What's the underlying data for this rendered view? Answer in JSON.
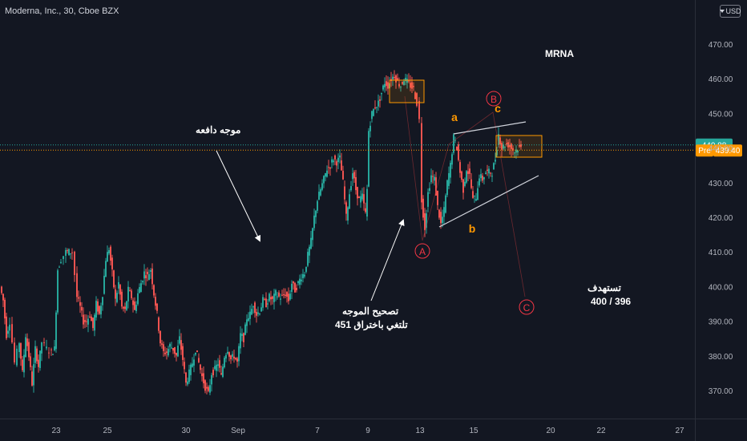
{
  "header": {
    "symbol_title": "Moderna, Inc., 30, Cboe BZX",
    "currency_label": "USD"
  },
  "annotations": {
    "ticker_label": "MRNA",
    "impulse_wave": "موجه دافعه",
    "correction_line1": "تصحيح الموجه",
    "correction_line2": "تلتغي باختراق 451",
    "target_line1": "تستهدف",
    "target_line2": "400 / 396",
    "wave_A": "A",
    "wave_B": "B",
    "wave_C": "C",
    "wave_a": "a",
    "wave_b": "b",
    "wave_c": "c"
  },
  "colors": {
    "background": "#131722",
    "up_candle": "#26a69a",
    "down_candle": "#ef5350",
    "wave_label": "#f23645",
    "sub_wave_label": "#ff9800",
    "box_border": "#ff9800",
    "last_price_badge": "#26a69a",
    "pre_badge": "#ff9800"
  },
  "chart_data": {
    "type": "candlestick",
    "title": "Moderna, Inc., 30, Cboe BZX",
    "ylim": [
      363,
      478
    ],
    "y_ticks": [
      370,
      380,
      390,
      400,
      410,
      420,
      430,
      440,
      450,
      460,
      470
    ],
    "y_tick_labels": [
      "370.00",
      "380.00",
      "390.00",
      "400.00",
      "410.00",
      "420.00",
      "430.00",
      "440.00",
      "450.00",
      "460.00",
      "470.00"
    ],
    "x_ticks": [
      "23",
      "25",
      "30",
      "Sep",
      "7",
      "9",
      "13",
      "15",
      "20",
      "22",
      "27"
    ],
    "last_price": 440.88,
    "last_price_label": "440.88",
    "pre_market_label": "Pre",
    "pre_market_price": 439.4,
    "pre_market_price_label": "439.40",
    "approx_path": [
      [
        0,
        400
      ],
      [
        4,
        396
      ],
      [
        8,
        386
      ],
      [
        12,
        390
      ],
      [
        18,
        378
      ],
      [
        24,
        384
      ],
      [
        28,
        375
      ],
      [
        32,
        386
      ],
      [
        36,
        380
      ],
      [
        40,
        372
      ],
      [
        44,
        382
      ],
      [
        48,
        377
      ],
      [
        52,
        384
      ],
      [
        58,
        382
      ],
      [
        64,
        381
      ],
      [
        68,
        382
      ],
      [
        72,
        405
      ],
      [
        76,
        408
      ],
      [
        82,
        410
      ],
      [
        86,
        410
      ],
      [
        90,
        410
      ],
      [
        96,
        397
      ],
      [
        100,
        394
      ],
      [
        104,
        390
      ],
      [
        108,
        390
      ],
      [
        112,
        392
      ],
      [
        116,
        388
      ],
      [
        120,
        395
      ],
      [
        124,
        392
      ],
      [
        128,
        398
      ],
      [
        132,
        408
      ],
      [
        136,
        411
      ],
      [
        140,
        404
      ],
      [
        144,
        396
      ],
      [
        148,
        401
      ],
      [
        152,
        394
      ],
      [
        156,
        393
      ],
      [
        160,
        399
      ],
      [
        164,
        397
      ],
      [
        168,
        393
      ],
      [
        172,
        398
      ],
      [
        176,
        401
      ],
      [
        180,
        404
      ],
      [
        184,
        403
      ],
      [
        188,
        405
      ],
      [
        192,
        398
      ],
      [
        196,
        392
      ],
      [
        200,
        384
      ],
      [
        204,
        381
      ],
      [
        208,
        381
      ],
      [
        212,
        383
      ],
      [
        216,
        382
      ],
      [
        220,
        380
      ],
      [
        224,
        385
      ],
      [
        228,
        379
      ],
      [
        232,
        372
      ],
      [
        236,
        375
      ],
      [
        240,
        378
      ],
      [
        244,
        382
      ],
      [
        248,
        378
      ],
      [
        252,
        374
      ],
      [
        256,
        371
      ],
      [
        260,
        369
      ],
      [
        264,
        375
      ],
      [
        268,
        376
      ],
      [
        272,
        378
      ],
      [
        276,
        374
      ],
      [
        280,
        380
      ],
      [
        284,
        382
      ],
      [
        288,
        379
      ],
      [
        292,
        380
      ],
      [
        296,
        378
      ],
      [
        300,
        386
      ],
      [
        304,
        385
      ],
      [
        308,
        391
      ],
      [
        312,
        392
      ],
      [
        316,
        395
      ],
      [
        320,
        392
      ],
      [
        324,
        393
      ],
      [
        328,
        396
      ],
      [
        332,
        395
      ],
      [
        336,
        397
      ],
      [
        340,
        396
      ],
      [
        344,
        398
      ],
      [
        348,
        397
      ],
      [
        352,
        397
      ],
      [
        356,
        398
      ],
      [
        360,
        396
      ],
      [
        364,
        401
      ],
      [
        368,
        399
      ],
      [
        372,
        401
      ],
      [
        376,
        403
      ],
      [
        380,
        404
      ],
      [
        384,
        409
      ],
      [
        388,
        413
      ],
      [
        392,
        420
      ],
      [
        396,
        425
      ],
      [
        400,
        428
      ],
      [
        404,
        431
      ],
      [
        408,
        434
      ],
      [
        412,
        435
      ],
      [
        416,
        437
      ],
      [
        420,
        436
      ],
      [
        424,
        437
      ],
      [
        428,
        430
      ],
      [
        432,
        420
      ],
      [
        436,
        427
      ],
      [
        440,
        433
      ],
      [
        444,
        428
      ],
      [
        448,
        425
      ],
      [
        452,
        426
      ],
      [
        456,
        421
      ],
      [
        458,
        428
      ],
      [
        460,
        445
      ],
      [
        464,
        450
      ],
      [
        468,
        452
      ],
      [
        472,
        453
      ],
      [
        476,
        456
      ],
      [
        480,
        459
      ],
      [
        484,
        458
      ],
      [
        488,
        460
      ],
      [
        492,
        461
      ],
      [
        496,
        459
      ],
      [
        500,
        458
      ],
      [
        504,
        460
      ],
      [
        508,
        459
      ],
      [
        512,
        458
      ],
      [
        516,
        457
      ],
      [
        520,
        453
      ],
      [
        523,
        448
      ],
      [
        526,
        425
      ],
      [
        530,
        417
      ],
      [
        534,
        427
      ],
      [
        538,
        432
      ],
      [
        542,
        431
      ],
      [
        546,
        423
      ],
      [
        550,
        418
      ],
      [
        554,
        422
      ],
      [
        558,
        430
      ],
      [
        562,
        435
      ],
      [
        566,
        443
      ],
      [
        570,
        440
      ],
      [
        574,
        433
      ],
      [
        578,
        428
      ],
      [
        582,
        434
      ],
      [
        586,
        432
      ],
      [
        590,
        425
      ],
      [
        594,
        426
      ],
      [
        598,
        432
      ],
      [
        602,
        431
      ],
      [
        606,
        433
      ],
      [
        610,
        433
      ],
      [
        614,
        433
      ],
      [
        618,
        437
      ],
      [
        622,
        444
      ],
      [
        626,
        440
      ],
      [
        630,
        441
      ],
      [
        634,
        441
      ],
      [
        638,
        440
      ],
      [
        642,
        439
      ],
      [
        646,
        440
      ],
      [
        650,
        440
      ]
    ]
  }
}
